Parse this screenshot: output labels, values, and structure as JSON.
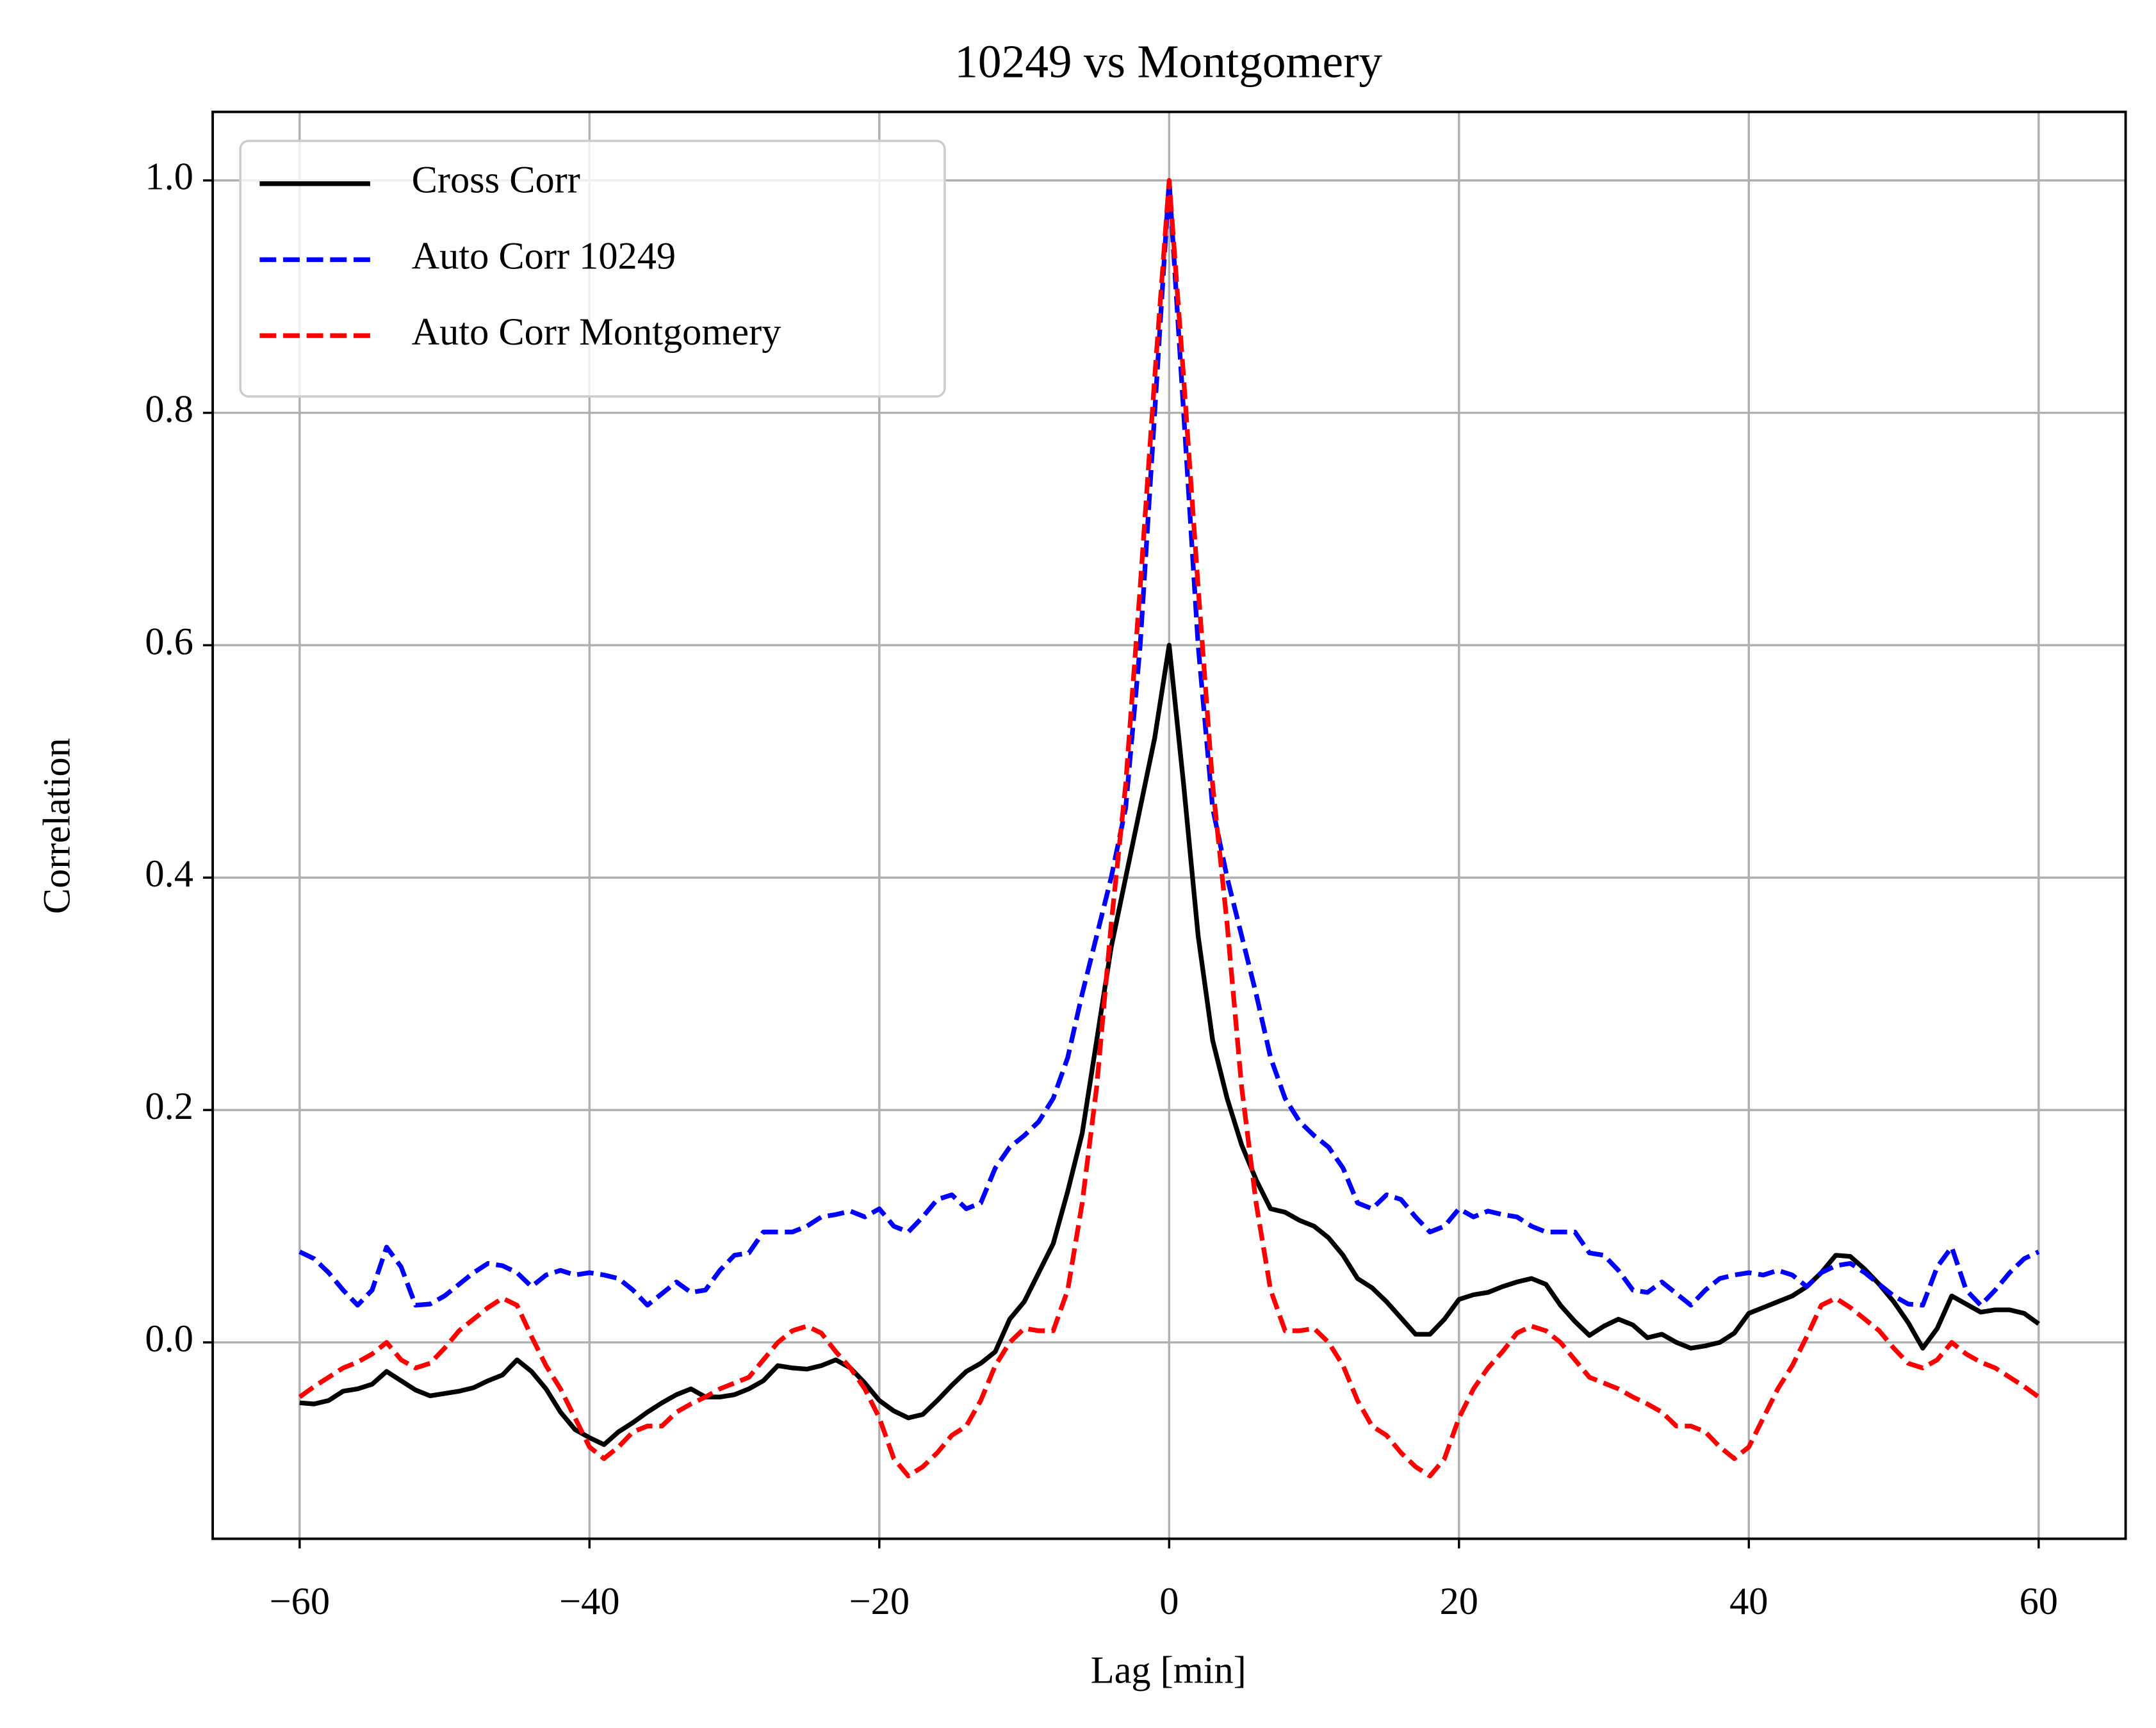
{
  "chart_data": {
    "type": "line",
    "title": "10249 vs Montgomery",
    "xlabel": "Lag [min]",
    "ylabel": "Correlation",
    "x": [
      -60,
      -59,
      -58,
      -57,
      -56,
      -55,
      -54,
      -53,
      -52,
      -51,
      -50,
      -49,
      -48,
      -47,
      -46,
      -45,
      -44,
      -43,
      -42,
      -41,
      -40,
      -39,
      -38,
      -37,
      -36,
      -35,
      -34,
      -33,
      -32,
      -31,
      -30,
      -29,
      -28,
      -27,
      -26,
      -25,
      -24,
      -23,
      -22,
      -21,
      -20,
      -19,
      -18,
      -17,
      -16,
      -15,
      -14,
      -13,
      -12,
      -11,
      -10,
      -9,
      -8,
      -7,
      -6,
      -5,
      -4,
      -3,
      -2,
      -1,
      0,
      1,
      2,
      3,
      4,
      5,
      6,
      7,
      8,
      9,
      10,
      11,
      12,
      13,
      14,
      15,
      16,
      17,
      18,
      19,
      20,
      21,
      22,
      23,
      24,
      25,
      26,
      27,
      28,
      29,
      30,
      31,
      32,
      33,
      34,
      35,
      36,
      37,
      38,
      39,
      40,
      41,
      42,
      43,
      44,
      45,
      46,
      47,
      48,
      49,
      50,
      51,
      52,
      53,
      54,
      55,
      56,
      57,
      58,
      59,
      60
    ],
    "series": [
      {
        "name": "Cross Corr",
        "color": "#000000",
        "linestyle": "solid",
        "values": [
          -0.052,
          -0.053,
          -0.05,
          -0.042,
          -0.04,
          -0.036,
          -0.025,
          -0.033,
          -0.041,
          -0.046,
          -0.044,
          -0.042,
          -0.039,
          -0.033,
          -0.028,
          -0.015,
          -0.025,
          -0.04,
          -0.06,
          -0.075,
          -0.082,
          -0.088,
          -0.077,
          -0.069,
          -0.06,
          -0.052,
          -0.045,
          -0.04,
          -0.047,
          -0.047,
          -0.045,
          -0.04,
          -0.033,
          -0.02,
          -0.022,
          -0.023,
          -0.02,
          -0.015,
          -0.022,
          -0.035,
          -0.05,
          -0.059,
          -0.065,
          -0.062,
          -0.05,
          -0.037,
          -0.025,
          -0.018,
          -0.008,
          0.02,
          0.035,
          0.06,
          0.085,
          0.13,
          0.18,
          0.26,
          0.34,
          0.4,
          0.46,
          0.52,
          0.6,
          0.48,
          0.35,
          0.26,
          0.21,
          0.17,
          0.14,
          0.115,
          0.112,
          0.105,
          0.1,
          0.09,
          0.075,
          0.055,
          0.047,
          0.035,
          0.021,
          0.007,
          0.007,
          0.02,
          0.037,
          0.041,
          0.043,
          0.048,
          0.052,
          0.055,
          0.05,
          0.032,
          0.018,
          0.006,
          0.014,
          0.02,
          0.015,
          0.004,
          0.007,
          0.0,
          -0.005,
          -0.003,
          0.0,
          0.008,
          0.025,
          0.03,
          0.035,
          0.04,
          0.048,
          0.06,
          0.075,
          0.074,
          0.063,
          0.05,
          0.035,
          0.017,
          -0.005,
          0.012,
          0.04,
          0.033,
          0.026,
          0.028,
          0.028,
          0.025,
          0.016
        ]
      },
      {
        "name": "Auto Corr 10249",
        "color": "#0000ff",
        "linestyle": "dashed",
        "values": [
          0.078,
          0.072,
          0.06,
          0.045,
          0.032,
          0.045,
          0.082,
          0.065,
          0.032,
          0.033,
          0.04,
          0.05,
          0.06,
          0.068,
          0.066,
          0.06,
          0.048,
          0.058,
          0.062,
          0.058,
          0.06,
          0.058,
          0.055,
          0.045,
          0.032,
          0.042,
          0.052,
          0.043,
          0.045,
          0.062,
          0.075,
          0.077,
          0.095,
          0.095,
          0.095,
          0.1,
          0.108,
          0.11,
          0.113,
          0.108,
          0.115,
          0.1,
          0.095,
          0.108,
          0.123,
          0.127,
          0.115,
          0.12,
          0.15,
          0.168,
          0.178,
          0.19,
          0.21,
          0.245,
          0.3,
          0.35,
          0.4,
          0.46,
          0.6,
          0.8,
          1.0,
          0.8,
          0.6,
          0.46,
          0.4,
          0.35,
          0.3,
          0.245,
          0.21,
          0.19,
          0.178,
          0.168,
          0.15,
          0.12,
          0.115,
          0.127,
          0.123,
          0.108,
          0.095,
          0.1,
          0.115,
          0.108,
          0.113,
          0.11,
          0.108,
          0.1,
          0.095,
          0.095,
          0.095,
          0.077,
          0.075,
          0.062,
          0.045,
          0.043,
          0.052,
          0.042,
          0.032,
          0.045,
          0.055,
          0.058,
          0.06,
          0.058,
          0.062,
          0.058,
          0.048,
          0.06,
          0.066,
          0.068,
          0.06,
          0.05,
          0.04,
          0.033,
          0.032,
          0.065,
          0.082,
          0.045,
          0.032,
          0.045,
          0.06,
          0.072,
          0.078
        ]
      },
      {
        "name": "Auto Corr Montgomery",
        "color": "#ff0000",
        "linestyle": "dashed",
        "values": [
          -0.047,
          -0.038,
          -0.03,
          -0.022,
          -0.017,
          -0.01,
          0.0,
          -0.015,
          -0.022,
          -0.018,
          -0.005,
          0.01,
          0.02,
          0.03,
          0.038,
          0.032,
          0.005,
          -0.02,
          -0.04,
          -0.065,
          -0.09,
          -0.1,
          -0.09,
          -0.077,
          -0.072,
          -0.072,
          -0.06,
          -0.053,
          -0.047,
          -0.04,
          -0.035,
          -0.03,
          -0.015,
          0.0,
          0.01,
          0.014,
          0.008,
          -0.008,
          -0.022,
          -0.04,
          -0.065,
          -0.1,
          -0.115,
          -0.107,
          -0.095,
          -0.08,
          -0.072,
          -0.05,
          -0.02,
          0.0,
          0.012,
          0.01,
          0.01,
          0.045,
          0.12,
          0.22,
          0.36,
          0.48,
          0.65,
          0.83,
          1.0,
          0.83,
          0.65,
          0.48,
          0.36,
          0.22,
          0.12,
          0.045,
          0.01,
          0.01,
          0.012,
          0.0,
          -0.02,
          -0.05,
          -0.072,
          -0.08,
          -0.095,
          -0.107,
          -0.115,
          -0.1,
          -0.065,
          -0.04,
          -0.022,
          -0.008,
          0.008,
          0.014,
          0.01,
          0.0,
          -0.015,
          -0.03,
          -0.035,
          -0.04,
          -0.047,
          -0.053,
          -0.06,
          -0.072,
          -0.072,
          -0.077,
          -0.09,
          -0.1,
          -0.09,
          -0.065,
          -0.04,
          -0.02,
          0.005,
          0.032,
          0.038,
          0.03,
          0.02,
          0.01,
          -0.005,
          -0.018,
          -0.022,
          -0.015,
          0.0,
          -0.01,
          -0.017,
          -0.022,
          -0.03,
          -0.038,
          -0.047
        ]
      }
    ],
    "xlim": [
      -66,
      66
    ],
    "ylim": [
      -0.169,
      1.059
    ],
    "xticks": [
      {
        "value": -60,
        "label": "−60"
      },
      {
        "value": -40,
        "label": "−40"
      },
      {
        "value": -20,
        "label": "−20"
      },
      0,
      20,
      40,
      60
    ],
    "yticks": [
      {
        "value": 0,
        "label": "0.0"
      },
      0.2,
      0.4,
      0.6,
      0.8,
      {
        "value": 1,
        "label": "1.0"
      }
    ],
    "grid": true,
    "legend": "upper left"
  }
}
